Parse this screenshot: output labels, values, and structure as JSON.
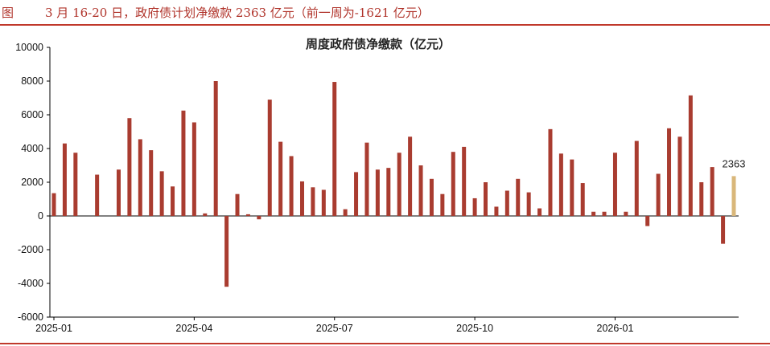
{
  "header": {
    "figure_label": "图",
    "caption": "3 月 16-20 日，政府债计划净缴款 2363 亿元（前一周为-1621 亿元）"
  },
  "chart_data": {
    "type": "bar",
    "title": "周度政府债净缴款（亿元）",
    "xlabel": "",
    "ylabel": "",
    "ylim": [
      -6000,
      10000
    ],
    "yticks": [
      -6000,
      -4000,
      -2000,
      0,
      2000,
      4000,
      6000,
      8000,
      10000
    ],
    "xtick_labels": [
      "2025-01",
      "2025-04",
      "2025-07",
      "2025-10",
      "2026-01"
    ],
    "xtick_positions": [
      0,
      13,
      26,
      39,
      52
    ],
    "grid": false,
    "bar_color": "#a93c30",
    "highlight_color": "#d9b77a",
    "highlight_index": 63,
    "highlight_label": "2363",
    "values": [
      1350,
      4300,
      3750,
      0,
      2450,
      0,
      2750,
      5800,
      4550,
      3900,
      2650,
      1750,
      6250,
      5550,
      150,
      8000,
      -4200,
      1300,
      100,
      -200,
      6900,
      4400,
      3550,
      2050,
      1700,
      1550,
      7950,
      400,
      2600,
      4350,
      2750,
      2850,
      3750,
      4700,
      3000,
      2200,
      1300,
      3800,
      4100,
      1050,
      2000,
      550,
      1500,
      2200,
      1400,
      450,
      5150,
      3700,
      3350,
      1950,
      250,
      250,
      3750,
      250,
      4450,
      -600,
      2500,
      5200,
      4700,
      7150,
      2000,
      2900,
      -1650,
      2363
    ]
  }
}
